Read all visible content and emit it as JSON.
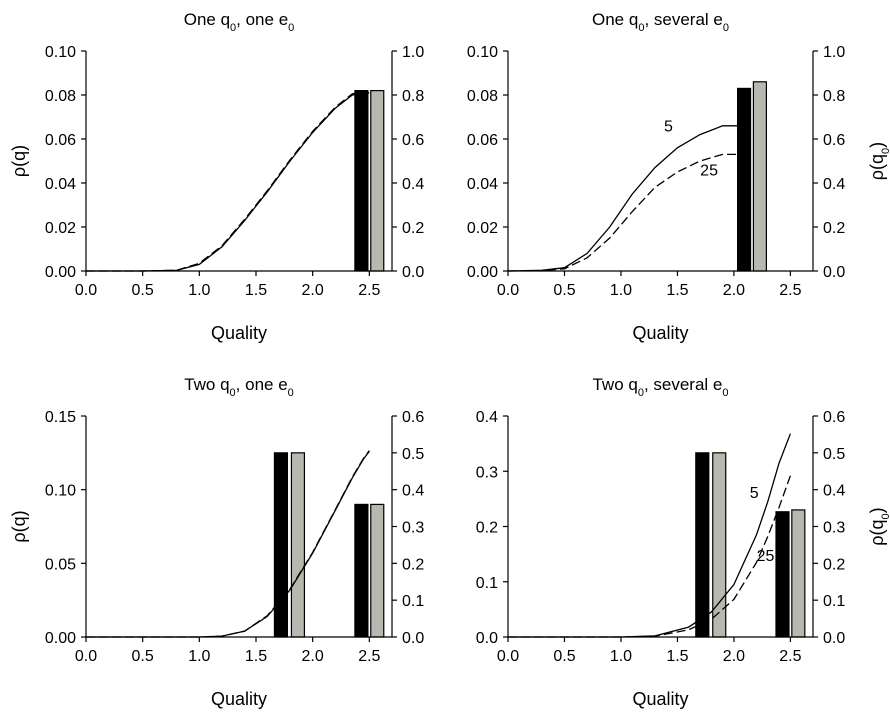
{
  "chart_data": [
    {
      "type": "line",
      "title": "One q₀, one e₀",
      "xlabel": "Quality",
      "ylabel": "ρ(q)",
      "y2label": "",
      "xlim": [
        0.0,
        2.7
      ],
      "ylim": [
        0.0,
        0.1
      ],
      "y2lim": [
        0.0,
        1.0
      ],
      "xticks": [
        "0.0",
        "0.5",
        "1.0",
        "1.5",
        "2.0",
        "2.5"
      ],
      "yticks": [
        "0.00",
        "0.02",
        "0.04",
        "0.06",
        "0.08",
        "0.10"
      ],
      "y2ticks": [
        "0.0",
        "0.2",
        "0.4",
        "0.6",
        "0.8",
        "1.0"
      ],
      "series": [
        {
          "style": "solid",
          "x": [
            0.0,
            0.5,
            0.8,
            1.0,
            1.2,
            1.4,
            1.6,
            1.8,
            2.0,
            2.2,
            2.35,
            2.5
          ],
          "y": [
            0.0,
            0.0,
            0.0003,
            0.003,
            0.011,
            0.023,
            0.036,
            0.05,
            0.063,
            0.074,
            0.08,
            0.081
          ]
        },
        {
          "style": "dashed",
          "x": [
            0.0,
            0.5,
            0.8,
            1.0,
            1.2,
            1.4,
            1.6,
            1.8,
            2.0,
            2.2,
            2.35,
            2.5
          ],
          "y": [
            0.0,
            0.0,
            0.0003,
            0.0035,
            0.0115,
            0.0235,
            0.0365,
            0.0505,
            0.0635,
            0.0745,
            0.0805,
            0.0815
          ]
        }
      ],
      "curve_labels": [],
      "bars": [
        {
          "x": 2.43,
          "value": 0.82,
          "color": "#000000"
        },
        {
          "x": 2.57,
          "value": 0.82,
          "color": "#b8b8b0"
        }
      ]
    },
    {
      "type": "line",
      "title": "One q₀, several e₀",
      "xlabel": "Quality",
      "ylabel": "",
      "y2label": "ρ(q₀)",
      "xlim": [
        0.0,
        2.7
      ],
      "ylim": [
        0.0,
        0.1
      ],
      "y2lim": [
        0.0,
        1.0
      ],
      "xticks": [
        "0.0",
        "0.5",
        "1.0",
        "1.5",
        "2.0",
        "2.5"
      ],
      "yticks": [
        "0.00",
        "0.02",
        "0.04",
        "0.06",
        "0.08",
        "0.10"
      ],
      "y2ticks": [
        "0.0",
        "0.2",
        "0.4",
        "0.6",
        "0.8",
        "1.0"
      ],
      "series": [
        {
          "name": "5",
          "style": "solid",
          "x": [
            0.0,
            0.3,
            0.5,
            0.7,
            0.9,
            1.1,
            1.3,
            1.5,
            1.7,
            1.9,
            2.05,
            2.15
          ],
          "y": [
            0.0,
            0.0003,
            0.0015,
            0.008,
            0.02,
            0.035,
            0.047,
            0.056,
            0.062,
            0.066,
            0.066,
            0.063
          ]
        },
        {
          "name": "25",
          "style": "dashed",
          "x": [
            0.0,
            0.3,
            0.5,
            0.7,
            0.9,
            1.1,
            1.3,
            1.5,
            1.7,
            1.9,
            2.05,
            2.15
          ],
          "y": [
            0.0,
            0.0002,
            0.001,
            0.006,
            0.015,
            0.027,
            0.038,
            0.045,
            0.05,
            0.053,
            0.053,
            0.052
          ]
        }
      ],
      "curve_labels": [
        {
          "text": "5",
          "x": 1.42,
          "y": 0.0635
        },
        {
          "text": "25",
          "x": 1.78,
          "y": 0.0435
        }
      ],
      "bars": [
        {
          "x": 2.09,
          "value": 0.83,
          "color": "#000000"
        },
        {
          "x": 2.23,
          "value": 0.86,
          "color": "#b8b8b0"
        }
      ]
    },
    {
      "type": "line",
      "title": "Two q₀, one e₀",
      "xlabel": "Quality",
      "ylabel": "ρ(q)",
      "y2label": "",
      "xlim": [
        0.0,
        2.7
      ],
      "ylim": [
        0.0,
        0.15
      ],
      "y2lim": [
        0.0,
        0.6
      ],
      "xticks": [
        "0.0",
        "0.5",
        "1.0",
        "1.5",
        "2.0",
        "2.5"
      ],
      "yticks": [
        "0.00",
        "0.05",
        "0.10",
        "0.15"
      ],
      "y2ticks": [
        "0.0",
        "0.1",
        "0.2",
        "0.3",
        "0.4",
        "0.5",
        "0.6"
      ],
      "series": [
        {
          "style": "solid",
          "x": [
            0.0,
            1.0,
            1.2,
            1.4,
            1.6,
            1.8,
            2.0,
            2.2,
            2.35,
            2.45,
            2.5
          ],
          "y": [
            0.0,
            0.0,
            0.0006,
            0.004,
            0.014,
            0.032,
            0.057,
            0.086,
            0.108,
            0.121,
            0.126
          ]
        },
        {
          "style": "dashed",
          "x": [
            0.0,
            1.0,
            1.2,
            1.4,
            1.6,
            1.8,
            2.0,
            2.2,
            2.35,
            2.45,
            2.5
          ],
          "y": [
            0.0,
            0.0,
            0.0006,
            0.004,
            0.0145,
            0.0325,
            0.0575,
            0.0865,
            0.1085,
            0.1215,
            0.1265
          ]
        }
      ],
      "curve_labels": [],
      "bars": [
        {
          "x": 1.72,
          "value": 0.5,
          "color": "#000000"
        },
        {
          "x": 1.87,
          "value": 0.5,
          "color": "#b8b8b0"
        },
        {
          "x": 2.43,
          "value": 0.36,
          "color": "#000000"
        },
        {
          "x": 2.57,
          "value": 0.36,
          "color": "#b8b8b0"
        }
      ]
    },
    {
      "type": "line",
      "title": "Two q₀, several e₀",
      "xlabel": "Quality",
      "ylabel": "",
      "y2label": "ρ(q₀)",
      "xlim": [
        0.0,
        2.7
      ],
      "ylim": [
        0.0,
        0.4
      ],
      "y2lim": [
        0.0,
        0.6
      ],
      "xticks": [
        "0.0",
        "0.5",
        "1.0",
        "1.5",
        "2.0",
        "2.5"
      ],
      "yticks": [
        "0.0",
        "0.1",
        "0.2",
        "0.3",
        "0.4"
      ],
      "y2ticks": [
        "0.0",
        "0.1",
        "0.2",
        "0.3",
        "0.4",
        "0.5",
        "0.6"
      ],
      "series": [
        {
          "name": "5",
          "style": "solid",
          "x": [
            0.0,
            1.0,
            1.3,
            1.6,
            1.8,
            2.0,
            2.2,
            2.3,
            2.4,
            2.5
          ],
          "y": [
            0.0,
            0.0,
            0.002,
            0.018,
            0.045,
            0.095,
            0.185,
            0.245,
            0.315,
            0.368
          ]
        },
        {
          "name": "25",
          "style": "dashed",
          "x": [
            0.0,
            1.0,
            1.3,
            1.6,
            1.8,
            2.0,
            2.2,
            2.3,
            2.4,
            2.5
          ],
          "y": [
            0.0,
            0.0,
            0.0015,
            0.013,
            0.032,
            0.068,
            0.135,
            0.182,
            0.235,
            0.292
          ]
        }
      ],
      "curve_labels": [
        {
          "text": "5",
          "x": 2.18,
          "y": 0.252
        },
        {
          "text": "25",
          "x": 2.28,
          "y": 0.138
        }
      ],
      "bars": [
        {
          "x": 1.72,
          "value": 0.5,
          "color": "#000000"
        },
        {
          "x": 1.87,
          "value": 0.5,
          "color": "#b8b8b0"
        },
        {
          "x": 2.43,
          "value": 0.34,
          "color": "#000000"
        },
        {
          "x": 2.57,
          "value": 0.345,
          "color": "#b8b8b0"
        }
      ]
    }
  ]
}
